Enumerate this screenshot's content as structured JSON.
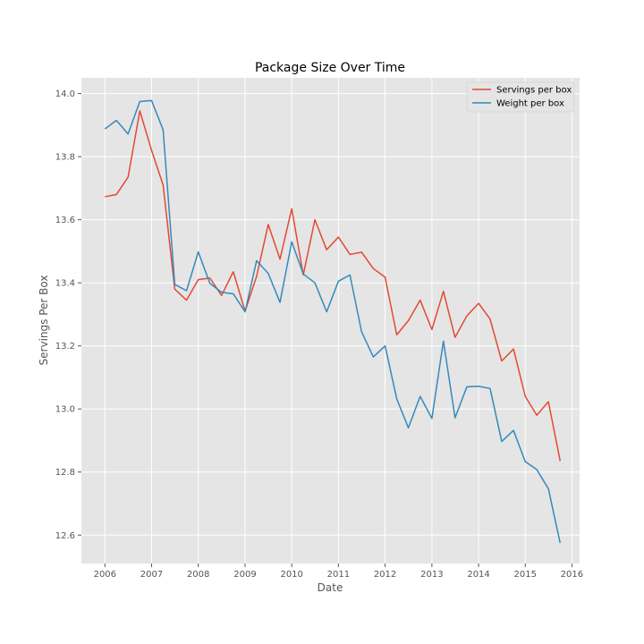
{
  "chart_data": {
    "type": "line",
    "title": "Package Size Over Time",
    "xlabel": "Date",
    "ylabel": "Servings Per Box",
    "xlim": [
      "2005-07-01",
      "2016-03-01"
    ],
    "ylim": [
      12.51,
      14.05
    ],
    "x_ticks": [
      "2006",
      "2007",
      "2008",
      "2009",
      "2010",
      "2011",
      "2012",
      "2013",
      "2014",
      "2015",
      "2016"
    ],
    "y_ticks": [
      "12.6",
      "12.8",
      "13.0",
      "13.2",
      "13.4",
      "13.6",
      "13.8",
      "14.0"
    ],
    "grid": true,
    "legend_position": "top-right",
    "x": [
      "2006-01-01",
      "2006-04-01",
      "2006-07-01",
      "2006-10-01",
      "2007-01-01",
      "2007-04-01",
      "2007-07-01",
      "2007-10-01",
      "2008-01-01",
      "2008-04-01",
      "2008-07-01",
      "2008-10-01",
      "2009-01-01",
      "2009-04-01",
      "2009-07-01",
      "2009-10-01",
      "2010-01-01",
      "2010-04-01",
      "2010-07-01",
      "2010-10-01",
      "2011-01-01",
      "2011-04-01",
      "2011-07-01",
      "2011-10-01",
      "2012-01-01",
      "2012-04-01",
      "2012-07-01",
      "2012-10-01",
      "2013-01-01",
      "2013-04-01",
      "2013-07-01",
      "2013-10-01",
      "2014-01-01",
      "2014-04-01",
      "2014-07-01",
      "2014-10-01",
      "2015-01-01",
      "2015-04-01",
      "2015-07-01",
      "2015-10-01"
    ],
    "series": [
      {
        "name": "Servings per box",
        "color": "#e24a33",
        "values": [
          13.673,
          13.68,
          13.735,
          13.945,
          13.82,
          13.71,
          13.38,
          13.345,
          13.41,
          13.415,
          13.36,
          13.435,
          13.31,
          13.42,
          13.585,
          13.475,
          13.635,
          13.425,
          13.6,
          13.505,
          13.545,
          13.49,
          13.497,
          13.445,
          13.418,
          13.235,
          13.28,
          13.345,
          13.252,
          13.373,
          13.227,
          13.295,
          13.335,
          13.285,
          13.152,
          13.19,
          13.04,
          12.98,
          13.023,
          12.835
        ]
      },
      {
        "name": "Weight per box",
        "color": "#348abd",
        "values": [
          13.888,
          13.915,
          13.872,
          13.975,
          13.978,
          13.885,
          13.395,
          13.375,
          13.498,
          13.398,
          13.37,
          13.365,
          13.308,
          13.47,
          13.43,
          13.338,
          13.53,
          13.428,
          13.4,
          13.308,
          13.405,
          13.425,
          13.245,
          13.165,
          13.2,
          13.032,
          12.94,
          13.04,
          12.97,
          13.215,
          12.972,
          13.07,
          13.072,
          13.065,
          12.897,
          12.932,
          12.833,
          12.808,
          12.747,
          12.575
        ]
      }
    ]
  }
}
